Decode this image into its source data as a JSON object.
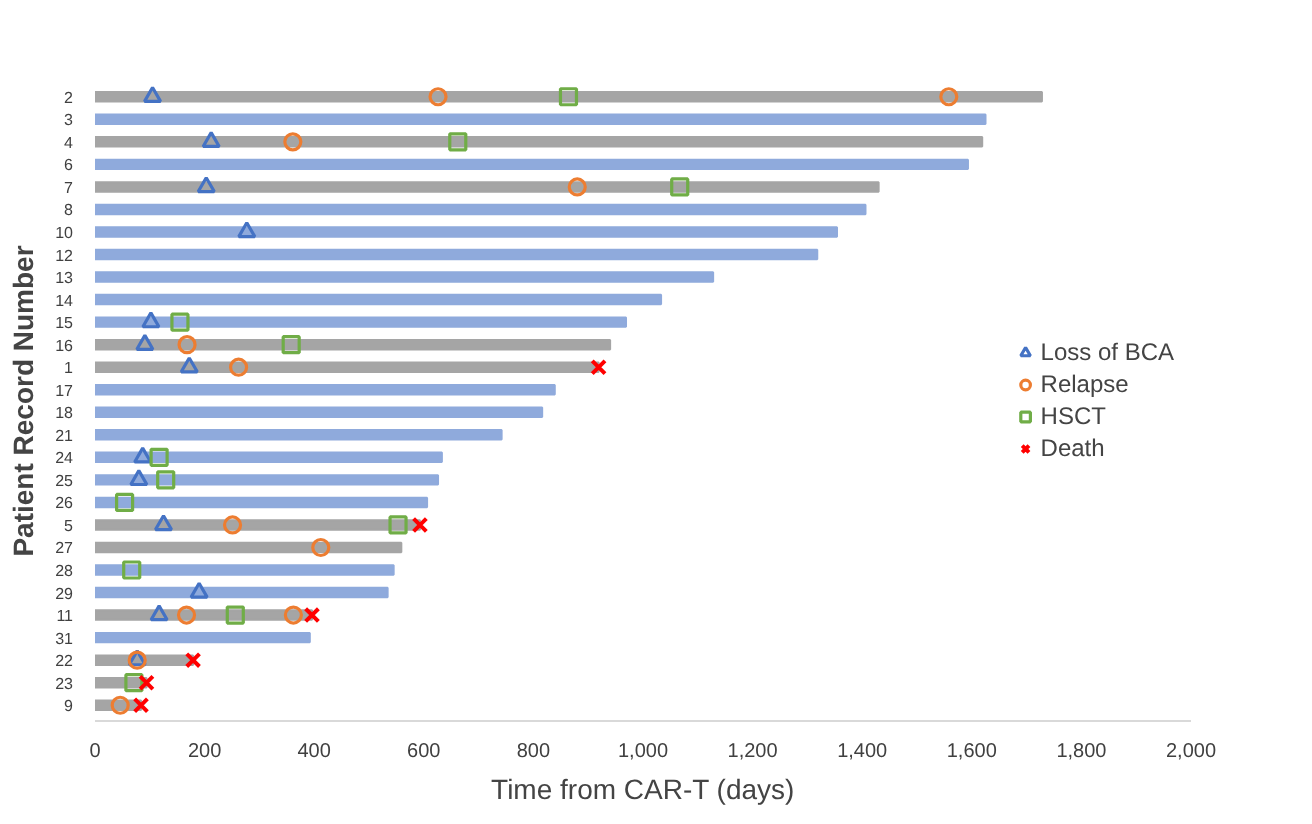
{
  "chart_data": {
    "type": "bar",
    "orientation": "horizontal",
    "xlabel": "Time from CAR-T (days)",
    "ylabel": "Patient Record Number",
    "categories": [
      "2",
      "3",
      "4",
      "6",
      "7",
      "8",
      "10",
      "12",
      "13",
      "14",
      "15",
      "16",
      "1",
      "17",
      "18",
      "21",
      "24",
      "25",
      "26",
      "5",
      "27",
      "28",
      "29",
      "11",
      "31",
      "22",
      "23",
      "9"
    ],
    "values": [
      1728,
      1625,
      1619,
      1593,
      1430,
      1406,
      1354,
      1318,
      1128,
      1033,
      969,
      940,
      919,
      839,
      816,
      742,
      633,
      626,
      606,
      593,
      559,
      545,
      534,
      396,
      392,
      179,
      94,
      84
    ],
    "colors": [
      "#a5a5a5",
      "#8faadc",
      "#a5a5a5",
      "#8faadc",
      "#a5a5a5",
      "#8faadc",
      "#8faadc",
      "#8faadc",
      "#8faadc",
      "#8faadc",
      "#8faadc",
      "#a5a5a5",
      "#a5a5a5",
      "#8faadc",
      "#8faadc",
      "#8faadc",
      "#8faadc",
      "#8faadc",
      "#8faadc",
      "#a5a5a5",
      "#a5a5a5",
      "#8faadc",
      "#8faadc",
      "#a5a5a5",
      "#8faadc",
      "#a5a5a5",
      "#a5a5a5",
      "#a5a5a5"
    ],
    "series": [
      {
        "type": "scatter",
        "name": "Loss of BCA",
        "color": "#4472c4",
        "marker": "triangle",
        "x": [
          "2",
          "4",
          "7",
          "10",
          "15",
          "16",
          "1",
          "24",
          "25",
          "5",
          "29",
          "11",
          "22"
        ],
        "values": [
          105,
          212,
          203,
          277,
          102,
          91,
          172,
          87,
          80,
          125,
          190,
          117,
          77
        ]
      },
      {
        "type": "scatter",
        "name": "Relapse",
        "color": "#ed7d31",
        "marker": "circle",
        "x": [
          "2",
          "2",
          "4",
          "7",
          "16",
          "1",
          "5",
          "27",
          "11",
          "11",
          "22",
          "9"
        ],
        "values": [
          626,
          1558,
          361,
          880,
          168,
          262,
          251,
          412,
          167,
          362,
          77,
          46
        ]
      },
      {
        "type": "scatter",
        "name": "HSCT",
        "color": "#70ad47",
        "marker": "square",
        "x": [
          "2",
          "4",
          "7",
          "15",
          "16",
          "24",
          "25",
          "26",
          "5",
          "28",
          "11",
          "23"
        ],
        "values": [
          864,
          662,
          1067,
          155,
          358,
          117,
          129,
          54,
          553,
          67,
          256,
          71
        ]
      },
      {
        "type": "scatter",
        "name": "Death",
        "color": "#ff0000",
        "marker": "cross",
        "x": [
          "1",
          "5",
          "11",
          "22",
          "23",
          "9"
        ],
        "values": [
          919,
          593,
          396,
          179,
          94,
          84
        ]
      }
    ],
    "xlim": [
      0,
      2000
    ],
    "xticks": [
      0,
      200,
      400,
      600,
      800,
      {
        "value": 1000,
        "label": "1,000"
      },
      {
        "value": 1200,
        "label": "1,200"
      },
      {
        "value": 1400,
        "label": "1,400"
      },
      {
        "value": 1600,
        "label": "1,600"
      },
      {
        "value": 1800,
        "label": "1,800"
      },
      {
        "value": 2000,
        "label": "2,000"
      }
    ],
    "grid": false,
    "legend": "right"
  }
}
